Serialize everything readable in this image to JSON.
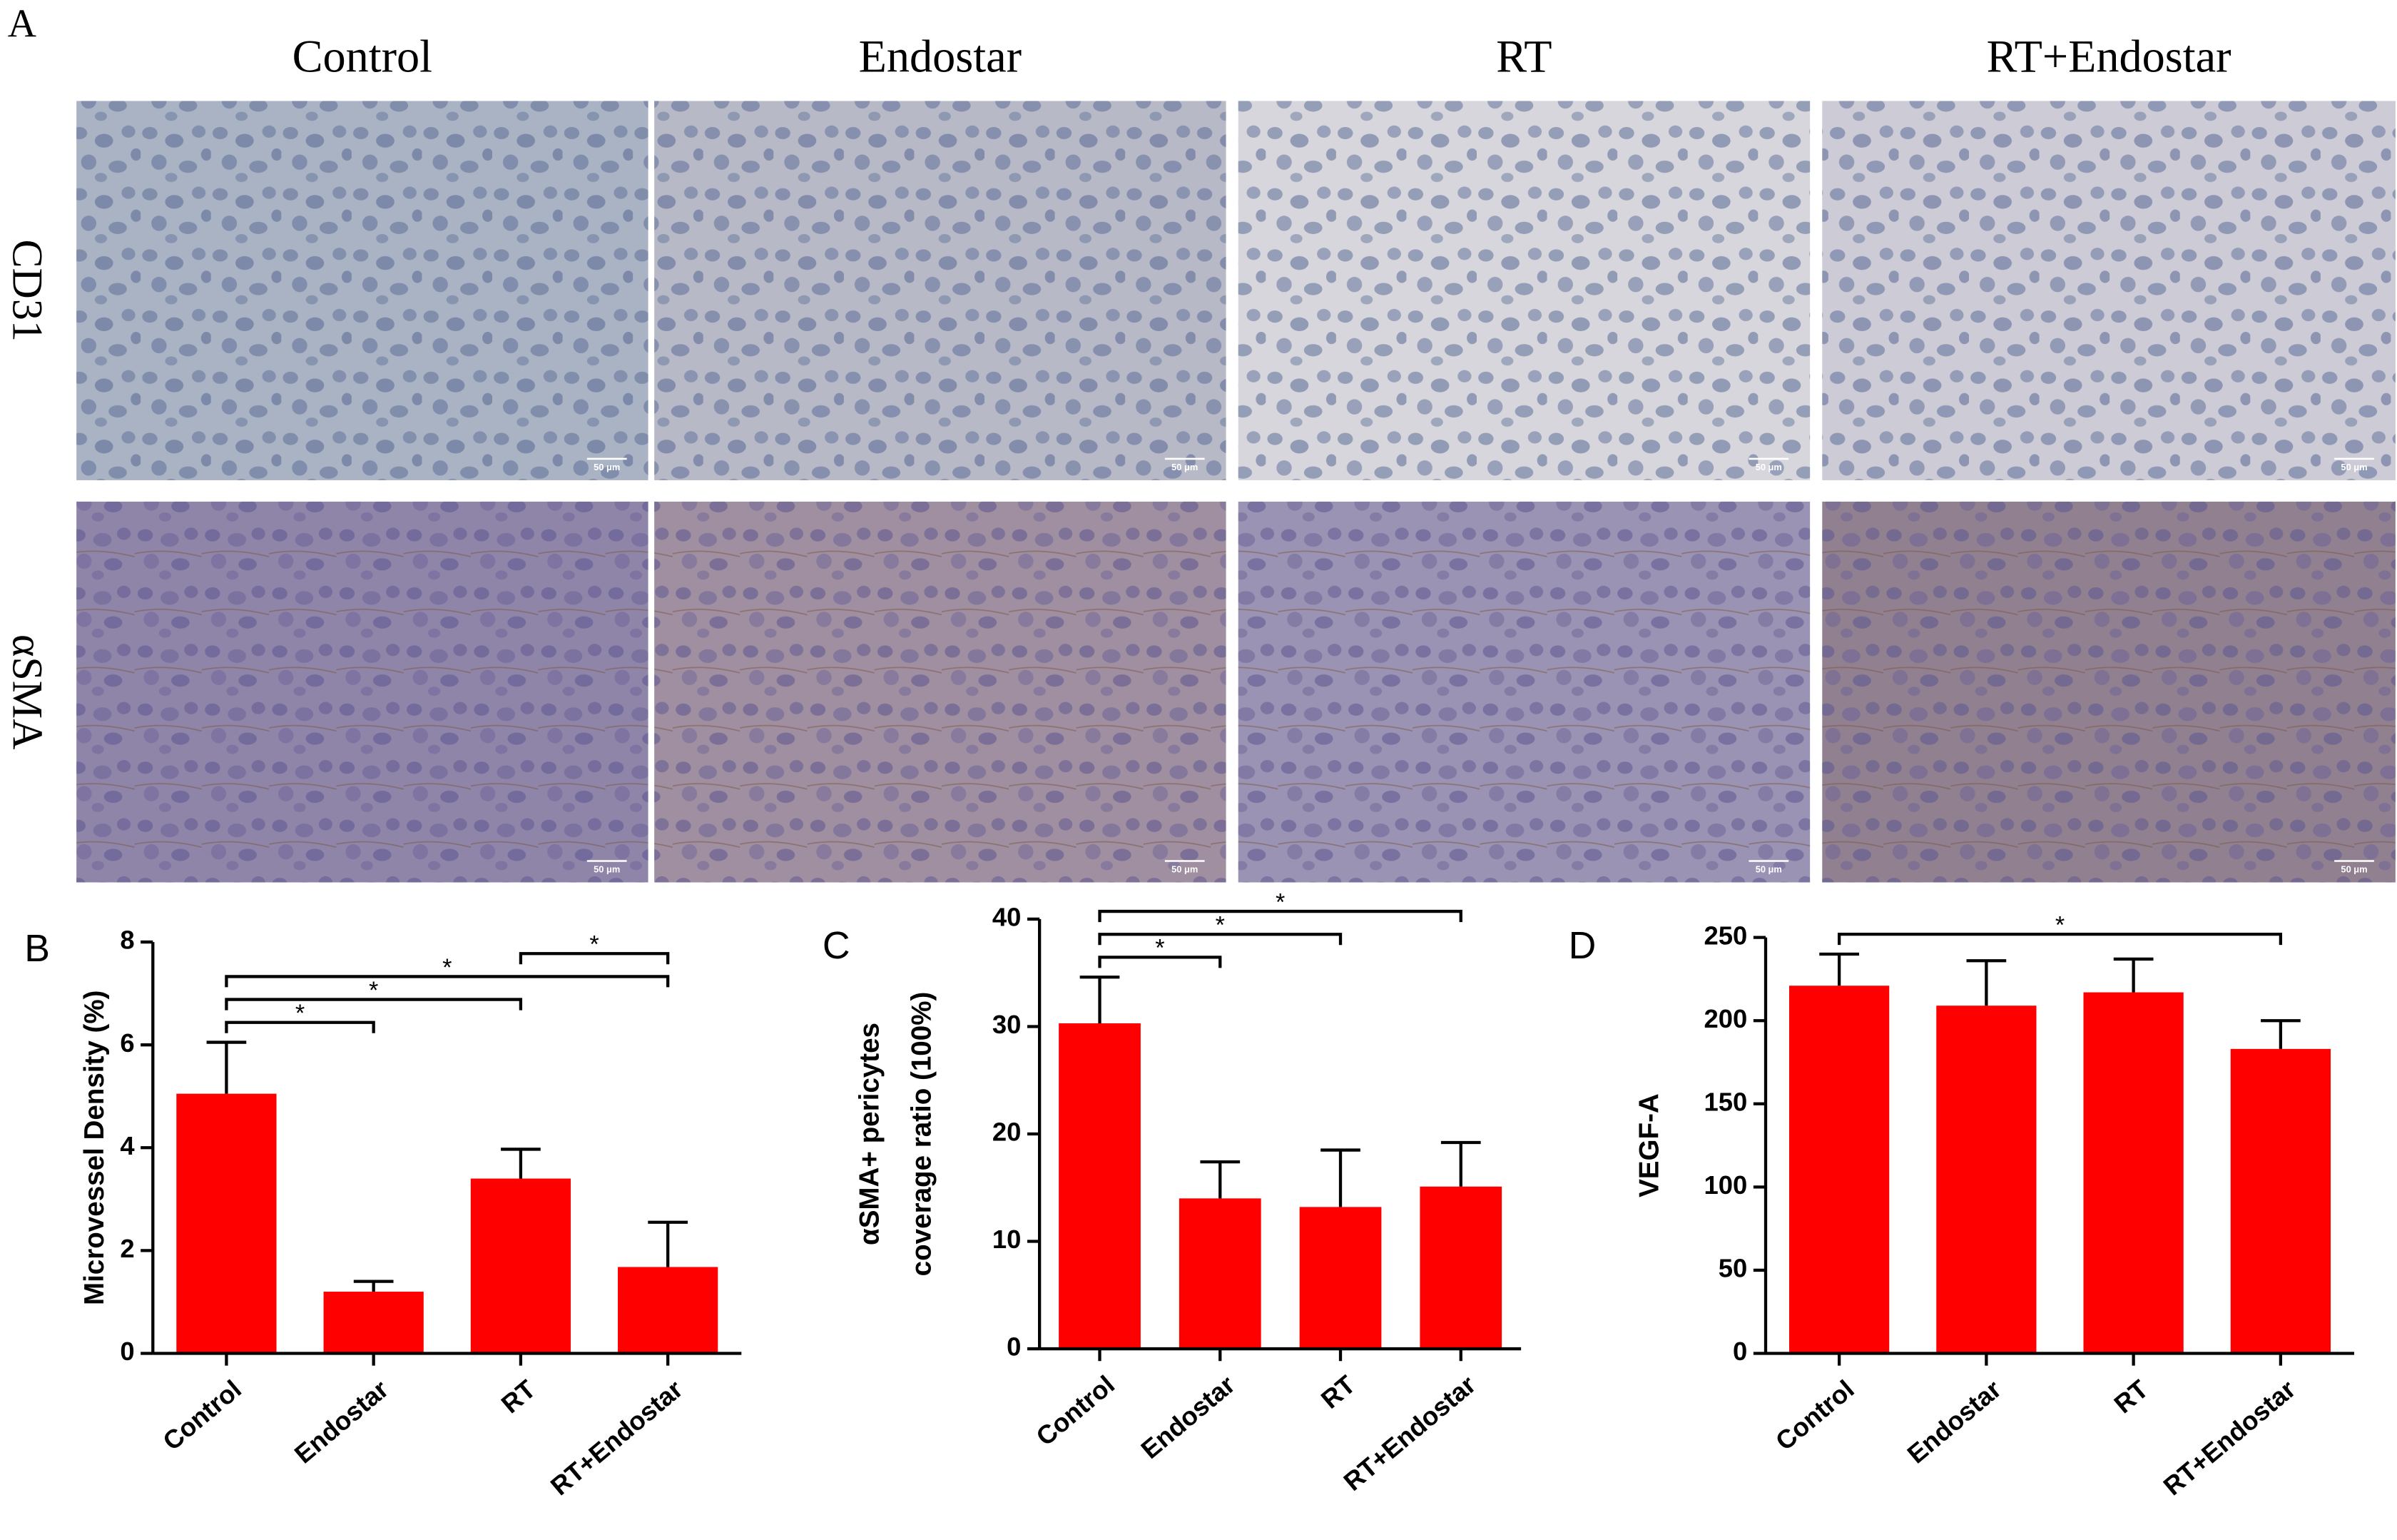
{
  "panel_a": {
    "label": "A",
    "columns": [
      "Control",
      "Endostar",
      "RT",
      "RT+Endostar"
    ],
    "rows": [
      "CD31",
      "αSMA"
    ],
    "scale_bar": "50 μm"
  },
  "chart_data": [
    {
      "type": "bar",
      "panel": "B",
      "ylabel": "Microvessel Density (%)",
      "categories": [
        "Control",
        "Endostar",
        "RT",
        "RT+Endostar"
      ],
      "values": [
        5.05,
        1.2,
        3.4,
        1.68
      ],
      "errors": [
        1.0,
        0.2,
        0.57,
        0.87
      ],
      "color": "#ff0000",
      "ylim": [
        0,
        8
      ],
      "yticks": [
        0,
        2,
        4,
        6,
        8
      ],
      "comparisons": [
        {
          "pair": [
            "Control",
            "Endostar"
          ],
          "label": "*"
        },
        {
          "pair": [
            "Control",
            "RT"
          ],
          "label": "*"
        },
        {
          "pair": [
            "Control",
            "RT+Endostar"
          ],
          "label": "*"
        },
        {
          "pair": [
            "RT",
            "RT+Endostar"
          ],
          "label": "*"
        }
      ]
    },
    {
      "type": "bar",
      "panel": "C",
      "ylabel": [
        "αSMA+ pericytes",
        "coverage ratio (100%)"
      ],
      "categories": [
        "Control",
        "Endostar",
        "RT",
        "RT+Endostar"
      ],
      "values": [
        30.3,
        14.0,
        13.2,
        15.1
      ],
      "errors": [
        4.3,
        3.4,
        5.3,
        4.1
      ],
      "color": "#ff0000",
      "ylim": [
        0,
        40
      ],
      "yticks": [
        0,
        10,
        20,
        30,
        40
      ],
      "comparisons": [
        {
          "pair": [
            "Control",
            "Endostar"
          ],
          "label": "*"
        },
        {
          "pair": [
            "Control",
            "RT"
          ],
          "label": "*"
        },
        {
          "pair": [
            "Control",
            "RT+Endostar"
          ],
          "label": "*"
        }
      ]
    },
    {
      "type": "bar",
      "panel": "D",
      "ylabel": "VEGF-A",
      "categories": [
        "Control",
        "Endostar",
        "RT",
        "RT+Endostar"
      ],
      "values": [
        221,
        209,
        217,
        183
      ],
      "errors": [
        19,
        27,
        20,
        17
      ],
      "color": "#ff0000",
      "ylim": [
        0,
        250
      ],
      "yticks": [
        0,
        50,
        100,
        150,
        200,
        250
      ],
      "comparisons": [
        {
          "pair": [
            "Control",
            "RT+Endostar"
          ],
          "label": "*"
        }
      ]
    }
  ]
}
